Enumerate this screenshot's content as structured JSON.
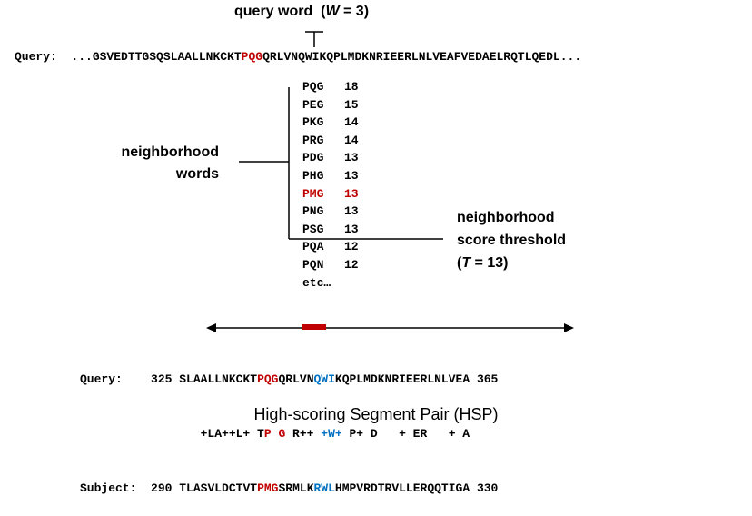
{
  "diagram": {
    "query_word_label": "query word",
    "query_word_param": "(",
    "query_word_W": "W",
    "query_word_eq": " = 3)",
    "query_line": {
      "label": "Query:",
      "pre": "...GSVEDTTGSQSLAALLNKCKT",
      "word": "PQG",
      "post": "QRLVNQWIKQPLMDKNRIEERLNLVEAFVEDAELRQTLQEDL..."
    },
    "neighborhood_label_line1": "neighborhood",
    "neighborhood_label_line2": "words",
    "neighborhood_words": [
      {
        "word": "PQG",
        "score": "18",
        "highlight": false
      },
      {
        "word": "PEG",
        "score": "15",
        "highlight": false
      },
      {
        "word": "PKG",
        "score": "14",
        "highlight": false
      },
      {
        "word": "PRG",
        "score": "14",
        "highlight": false
      },
      {
        "word": "PDG",
        "score": "13",
        "highlight": false
      },
      {
        "word": "PHG",
        "score": "13",
        "highlight": false
      },
      {
        "word": "PMG",
        "score": "13",
        "highlight": true
      },
      {
        "word": "PNG",
        "score": "13",
        "highlight": false
      },
      {
        "word": "PSG",
        "score": "13",
        "highlight": false
      },
      {
        "word": "PQA",
        "score": "12",
        "highlight": false
      },
      {
        "word": "PQN",
        "score": "12",
        "highlight": false
      },
      {
        "word": "etc…",
        "score": "",
        "highlight": false
      }
    ],
    "threshold_label_line1": "neighborhood",
    "threshold_label_line2": "score threshold",
    "threshold_label_open": "(",
    "threshold_label_T": "T",
    "threshold_label_rest": " = 13)",
    "alignment": {
      "query_label": "Query:",
      "query_start": "325",
      "query_seg1": "SLAALLNKCKT",
      "query_seg2": "PQG",
      "query_seg3": "QRLVN",
      "query_seg4": "QWI",
      "query_seg5": "KQPLMDKNRIEERLNLVEA",
      "query_end": "365",
      "match_seg1": "+LA++L+ T",
      "match_seg2": "P G",
      "match_seg3": " R++ ",
      "match_seg4": "+W+",
      "match_seg5": " P+ D   + ER   + A",
      "subject_label": "Subject:",
      "subject_start": "290",
      "subject_seg1": "TLASVLDCTVT",
      "subject_seg2": "PMG",
      "subject_seg3": "SRMLK",
      "subject_seg4": "RWL",
      "subject_seg5": "HMPVRDTRVLLERQQTIGA",
      "subject_end": "330"
    },
    "caption": "High-scoring Segment Pair (HSP)",
    "colors": {
      "highlight_red": "#c00000",
      "highlight_blue": "#0070c0"
    }
  }
}
